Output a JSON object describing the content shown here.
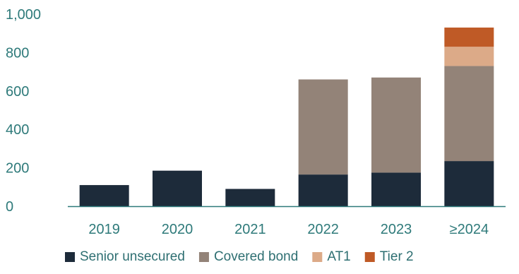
{
  "chart_data": {
    "type": "bar",
    "stacked": true,
    "title": "",
    "xlabel": "",
    "ylabel": "",
    "categories": [
      "2019",
      "2020",
      "2021",
      "2022",
      "2023",
      "≥2024"
    ],
    "ylim": [
      0,
      1000
    ],
    "yticks": [
      0,
      200,
      400,
      600,
      800,
      1000
    ],
    "ytick_labels": [
      "0",
      "200",
      "400",
      "600",
      "800",
      "1,000"
    ],
    "grid": false,
    "legend_position": "bottom",
    "series": [
      {
        "name": "Senior unsecured",
        "color": "#1d2b3a",
        "values": [
          110,
          185,
          90,
          165,
          175,
          235
        ]
      },
      {
        "name": "Covered bond",
        "color": "#938378",
        "values": [
          0,
          0,
          0,
          495,
          495,
          495
        ]
      },
      {
        "name": "AT1",
        "color": "#dcaa88",
        "values": [
          0,
          0,
          0,
          0,
          0,
          100
        ]
      },
      {
        "name": "Tier 2",
        "color": "#bf5a26",
        "values": [
          0,
          0,
          0,
          0,
          0,
          100
        ]
      }
    ],
    "axis_color": "#2e7a7a",
    "tick_label_color": "#2e7a7a",
    "legend_text_color": "#2e6f72"
  }
}
